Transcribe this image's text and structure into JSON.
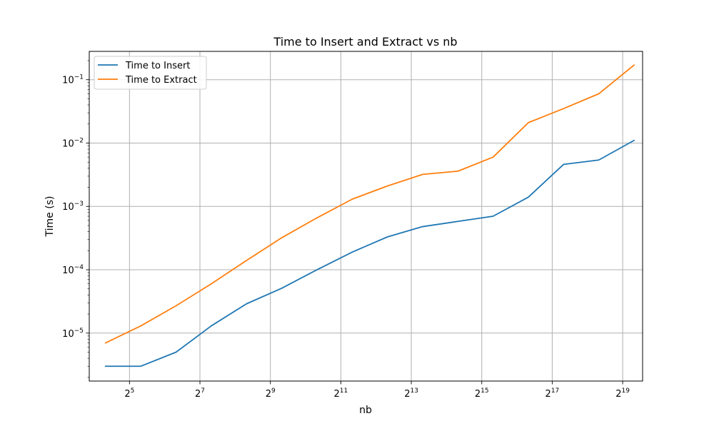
{
  "chart_data": {
    "type": "line",
    "title": "Time to Insert and Extract vs nb",
    "xlabel": "nb",
    "ylabel": "Time (s)",
    "xscale": "log2",
    "yscale": "log10",
    "xlim": [
      14.5,
      776000
    ],
    "ylim": [
      1.75e-06,
      0.28
    ],
    "x_ticks": [
      {
        "value": 32,
        "base": "2",
        "exp": "5"
      },
      {
        "value": 128,
        "base": "2",
        "exp": "7"
      },
      {
        "value": 512,
        "base": "2",
        "exp": "9"
      },
      {
        "value": 2048,
        "base": "2",
        "exp": "11"
      },
      {
        "value": 8192,
        "base": "2",
        "exp": "13"
      },
      {
        "value": 32768,
        "base": "2",
        "exp": "15"
      },
      {
        "value": 131072,
        "base": "2",
        "exp": "17"
      },
      {
        "value": 524288,
        "base": "2",
        "exp": "19"
      }
    ],
    "y_ticks": [
      {
        "value": 1e-05,
        "base": "10",
        "exp": "−5"
      },
      {
        "value": 0.0001,
        "base": "10",
        "exp": "−4"
      },
      {
        "value": 0.001,
        "base": "10",
        "exp": "−3"
      },
      {
        "value": 0.01,
        "base": "10",
        "exp": "−2"
      },
      {
        "value": 0.1,
        "base": "10",
        "exp": "−1"
      }
    ],
    "grid": true,
    "legend_position": "top-left",
    "series": [
      {
        "name": "Time to Insert",
        "color": "#1f77b4",
        "x": [
          20,
          40,
          80,
          160,
          320,
          640,
          1280,
          2560,
          5120,
          10240,
          20480,
          40960,
          81920,
          163840,
          327680,
          655360
        ],
        "y": [
          3e-06,
          3e-06,
          5e-06,
          1.3e-05,
          2.9e-05,
          5.1e-05,
          0.0001,
          0.00019,
          0.00033,
          0.00048,
          0.00058,
          0.0007,
          0.0014,
          0.0046,
          0.0054,
          0.011
        ]
      },
      {
        "name": "Time to Extract",
        "color": "#ff7f0e",
        "x": [
          20,
          40,
          80,
          160,
          320,
          640,
          1280,
          2560,
          5120,
          10240,
          20480,
          40960,
          81920,
          163840,
          327680,
          655360
        ],
        "y": [
          7e-06,
          1.3e-05,
          2.7e-05,
          6e-05,
          0.00014,
          0.00032,
          0.00066,
          0.0013,
          0.0021,
          0.0032,
          0.0036,
          0.006,
          0.021,
          0.035,
          0.06,
          0.17
        ]
      }
    ]
  }
}
